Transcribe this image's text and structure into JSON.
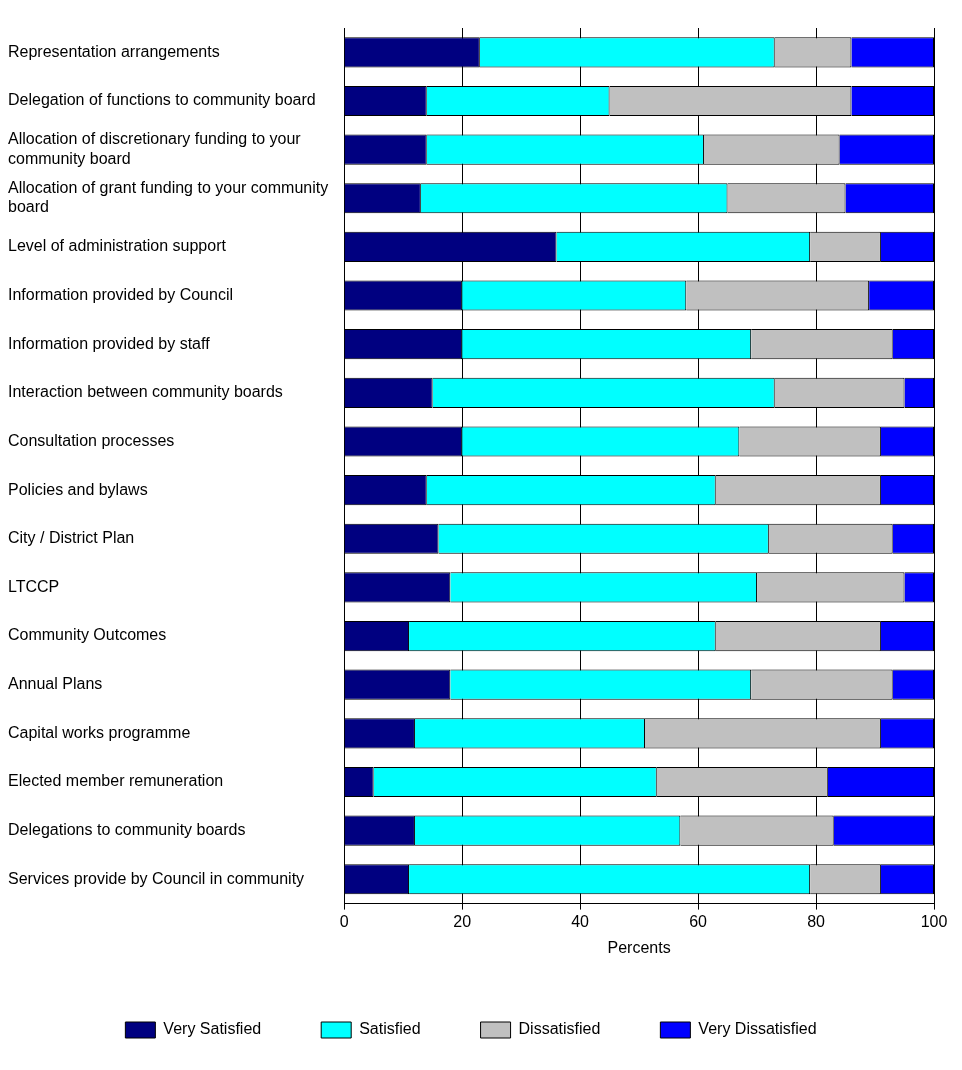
{
  "chart_data": {
    "type": "bar",
    "orientation": "horizontal",
    "stacked": true,
    "xlabel": "Percents",
    "xlim": [
      0,
      100
    ],
    "xticks": [
      0,
      20,
      40,
      60,
      80,
      100
    ],
    "grid": "x",
    "legend": "bottom",
    "categories": [
      "Representation arrangements",
      "Delegation of functions to community board",
      "Allocation of discretionary funding to your community board",
      "Allocation of grant funding to your community board",
      "Level of administration support",
      "Information provided by Council",
      "Information provided by staff",
      "Interaction between community boards",
      "Consultation processes",
      "Policies and bylaws",
      "City / District Plan",
      "LTCCP",
      "Community Outcomes",
      "Annual Plans",
      "Capital works programme",
      "Elected member remuneration",
      "Delegations to community boards",
      "Services provide by Council in community"
    ],
    "series": [
      {
        "name": "Very Satisfied",
        "color": "#000080",
        "values": [
          23,
          14,
          14,
          13,
          36,
          20,
          20,
          15,
          20,
          14,
          16,
          18,
          11,
          18,
          12,
          5,
          12,
          11
        ]
      },
      {
        "name": "Satisfied",
        "color": "#00ffff",
        "values": [
          50,
          31,
          47,
          52,
          43,
          38,
          49,
          58,
          47,
          49,
          56,
          52,
          52,
          51,
          39,
          48,
          45,
          68
        ]
      },
      {
        "name": "Dissatisfied",
        "color": "#c0c0c0",
        "values": [
          13,
          41,
          23,
          20,
          12,
          31,
          24,
          22,
          24,
          28,
          21,
          25,
          28,
          24,
          40,
          29,
          26,
          12
        ]
      },
      {
        "name": "Very Dissatisfied",
        "color": "#0000ff",
        "values": [
          14,
          14,
          16,
          15,
          9,
          11,
          7,
          5,
          9,
          9,
          7,
          5,
          9,
          7,
          9,
          18,
          17,
          9
        ]
      }
    ]
  }
}
